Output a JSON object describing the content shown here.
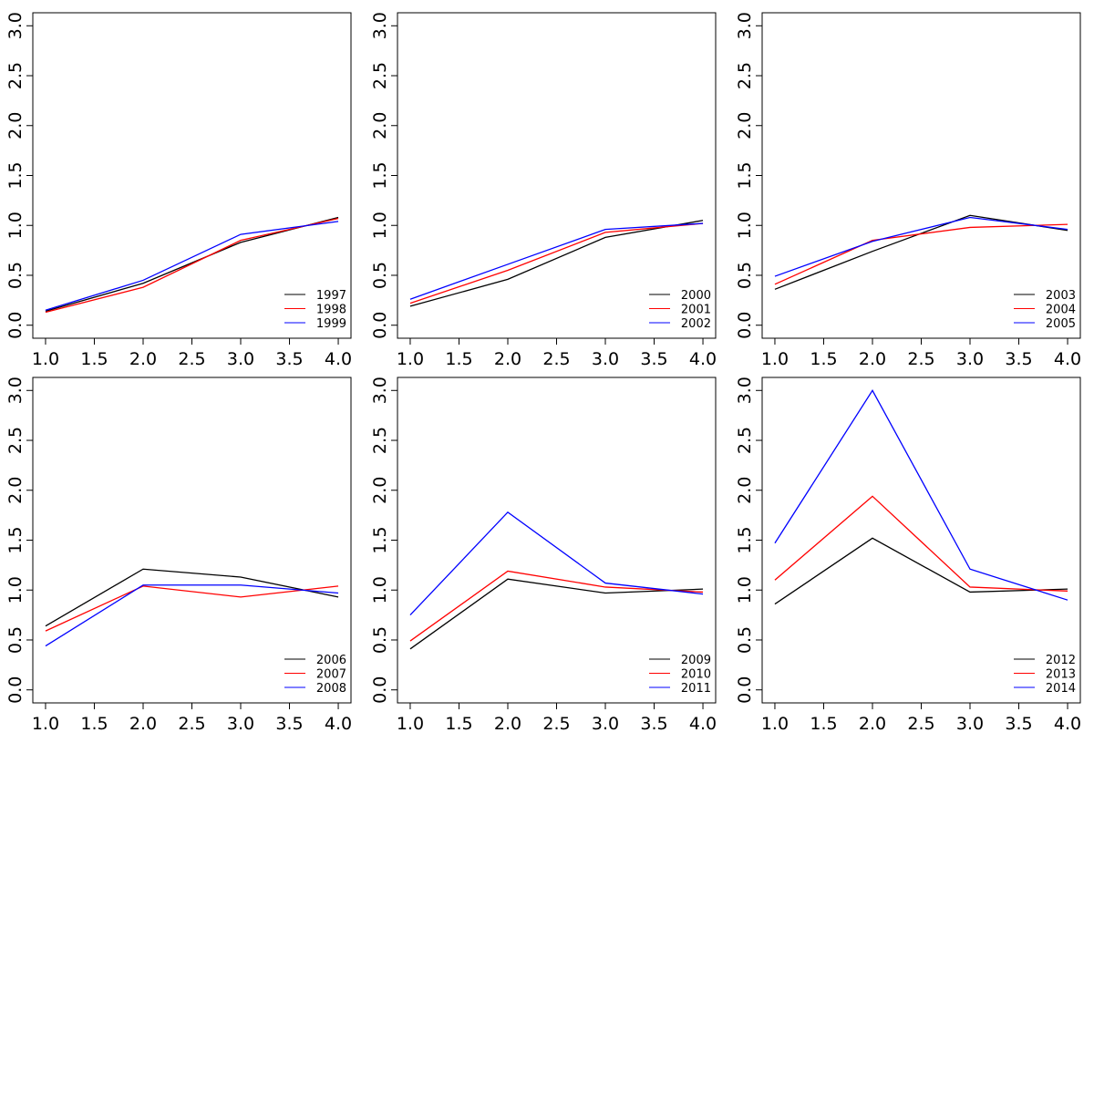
{
  "chart_data": [
    {
      "type": "line",
      "x": [
        1,
        2,
        3,
        4
      ],
      "xlim": [
        1,
        4
      ],
      "ylim": [
        0,
        3
      ],
      "xticks": [
        "1.0",
        "1.5",
        "2.0",
        "2.5",
        "3.0",
        "3.5",
        "4.0"
      ],
      "yticks": [
        "0.0",
        "0.5",
        "1.0",
        "1.5",
        "2.0",
        "2.5",
        "3.0"
      ],
      "legend_position": "bottom-right",
      "grid": false,
      "series": [
        {
          "name": "1997",
          "color": "#000000",
          "values": [
            0.14,
            0.42,
            0.83,
            1.08
          ]
        },
        {
          "name": "1998",
          "color": "#ff0000",
          "values": [
            0.13,
            0.38,
            0.85,
            1.07
          ]
        },
        {
          "name": "1999",
          "color": "#0000ff",
          "values": [
            0.15,
            0.45,
            0.91,
            1.04
          ]
        }
      ]
    },
    {
      "type": "line",
      "x": [
        1,
        2,
        3,
        4
      ],
      "xlim": [
        1,
        4
      ],
      "ylim": [
        0,
        3
      ],
      "xticks": [
        "1.0",
        "1.5",
        "2.0",
        "2.5",
        "3.0",
        "3.5",
        "4.0"
      ],
      "yticks": [
        "0.0",
        "0.5",
        "1.0",
        "1.5",
        "2.0",
        "2.5",
        "3.0"
      ],
      "legend_position": "bottom-right",
      "grid": false,
      "series": [
        {
          "name": "2000",
          "color": "#000000",
          "values": [
            0.19,
            0.46,
            0.88,
            1.05
          ]
        },
        {
          "name": "2001",
          "color": "#ff0000",
          "values": [
            0.22,
            0.55,
            0.93,
            1.02
          ]
        },
        {
          "name": "2002",
          "color": "#0000ff",
          "values": [
            0.26,
            0.61,
            0.96,
            1.02
          ]
        }
      ]
    },
    {
      "type": "line",
      "x": [
        1,
        2,
        3,
        4
      ],
      "xlim": [
        1,
        4
      ],
      "ylim": [
        0,
        3
      ],
      "xticks": [
        "1.0",
        "1.5",
        "2.0",
        "2.5",
        "3.0",
        "3.5",
        "4.0"
      ],
      "yticks": [
        "0.0",
        "0.5",
        "1.0",
        "1.5",
        "2.0",
        "2.5",
        "3.0"
      ],
      "legend_position": "bottom-right",
      "grid": false,
      "series": [
        {
          "name": "2003",
          "color": "#000000",
          "values": [
            0.36,
            0.74,
            1.1,
            0.95
          ]
        },
        {
          "name": "2004",
          "color": "#ff0000",
          "values": [
            0.41,
            0.85,
            0.98,
            1.01
          ]
        },
        {
          "name": "2005",
          "color": "#0000ff",
          "values": [
            0.49,
            0.84,
            1.08,
            0.96
          ]
        }
      ]
    },
    {
      "type": "line",
      "x": [
        1,
        2,
        3,
        4
      ],
      "xlim": [
        1,
        4
      ],
      "ylim": [
        0,
        3
      ],
      "xticks": [
        "1.0",
        "1.5",
        "2.0",
        "2.5",
        "3.0",
        "3.5",
        "4.0"
      ],
      "yticks": [
        "0.0",
        "0.5",
        "1.0",
        "1.5",
        "2.0",
        "2.5",
        "3.0"
      ],
      "legend_position": "bottom-right",
      "grid": false,
      "series": [
        {
          "name": "2006",
          "color": "#000000",
          "values": [
            0.64,
            1.21,
            1.13,
            0.93
          ]
        },
        {
          "name": "2007",
          "color": "#ff0000",
          "values": [
            0.59,
            1.04,
            0.93,
            1.04
          ]
        },
        {
          "name": "2008",
          "color": "#0000ff",
          "values": [
            0.44,
            1.05,
            1.05,
            0.97
          ]
        }
      ]
    },
    {
      "type": "line",
      "x": [
        1,
        2,
        3,
        4
      ],
      "xlim": [
        1,
        4
      ],
      "ylim": [
        0,
        3
      ],
      "xticks": [
        "1.0",
        "1.5",
        "2.0",
        "2.5",
        "3.0",
        "3.5",
        "4.0"
      ],
      "yticks": [
        "0.0",
        "0.5",
        "1.0",
        "1.5",
        "2.0",
        "2.5",
        "3.0"
      ],
      "legend_position": "bottom-right",
      "grid": false,
      "series": [
        {
          "name": "2009",
          "color": "#000000",
          "values": [
            0.41,
            1.11,
            0.97,
            1.01
          ]
        },
        {
          "name": "2010",
          "color": "#ff0000",
          "values": [
            0.49,
            1.19,
            1.03,
            0.98
          ]
        },
        {
          "name": "2011",
          "color": "#0000ff",
          "values": [
            0.75,
            1.78,
            1.07,
            0.96
          ]
        }
      ]
    },
    {
      "type": "line",
      "x": [
        1,
        2,
        3,
        4
      ],
      "xlim": [
        1,
        4
      ],
      "ylim": [
        0,
        3
      ],
      "xticks": [
        "1.0",
        "1.5",
        "2.0",
        "2.5",
        "3.0",
        "3.5",
        "4.0"
      ],
      "yticks": [
        "0.0",
        "0.5",
        "1.0",
        "1.5",
        "2.0",
        "2.5",
        "3.0"
      ],
      "legend_position": "bottom-right",
      "grid": false,
      "series": [
        {
          "name": "2012",
          "color": "#000000",
          "values": [
            0.86,
            1.52,
            0.98,
            1.01
          ]
        },
        {
          "name": "2013",
          "color": "#ff0000",
          "values": [
            1.1,
            1.94,
            1.03,
            0.99
          ]
        },
        {
          "name": "2014",
          "color": "#0000ff",
          "values": [
            1.47,
            3.0,
            1.21,
            0.9
          ]
        }
      ]
    }
  ]
}
